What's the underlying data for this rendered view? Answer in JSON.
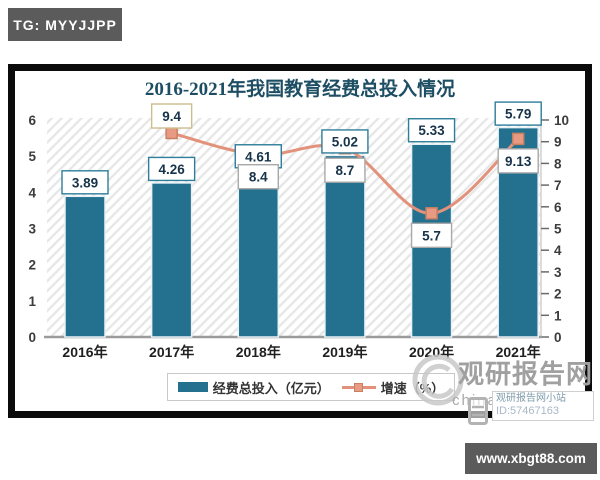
{
  "badges": {
    "top_left": "TG: MYYJJPP",
    "bottom_right": "www.xbgt88.com"
  },
  "chart_data": {
    "type": "bar",
    "combo": "bar+line dual axis",
    "title": "2016-2021年我国教育经费总投入情况",
    "categories": [
      "2016年",
      "2017年",
      "2018年",
      "2019年",
      "2020年",
      "2021年"
    ],
    "series": [
      {
        "name": "经费总投入（亿元）",
        "type": "bar",
        "axis": "left",
        "color": "#24708f",
        "values": [
          3.89,
          4.26,
          4.61,
          5.02,
          5.33,
          5.79
        ]
      },
      {
        "name": "增速（%）",
        "type": "line",
        "axis": "right",
        "color": "#e2927a",
        "marker_color": "#e89a82",
        "values": [
          null,
          9.4,
          8.4,
          8.7,
          5.7,
          9.13
        ]
      }
    ],
    "left_axis": {
      "min": 0,
      "max": 6,
      "tick_labels": [
        "0",
        "1",
        "2",
        "3",
        "4",
        "5",
        "6"
      ]
    },
    "right_axis": {
      "min": 0,
      "max": 10,
      "tick_labels": [
        "0",
        "1",
        "2",
        "3",
        "4",
        "5",
        "6",
        "7",
        "8",
        "9",
        "10"
      ]
    },
    "legend_position": "bottom",
    "background": "diagonal-hatch"
  },
  "watermark": {
    "main": "观研报告网",
    "sub": "chinabaogao",
    "overlay_line1": "观研报告网小站",
    "overlay_line2": "ID:57467163"
  },
  "colors": {
    "bar": "#24708f",
    "line": "#e2927a",
    "title": "#1d4e63",
    "bar_label_border": "#2e7d99",
    "line_label_border": "#a9a9a9",
    "first_line_label_border": "#cbbd8e",
    "badge_bg": "#5b5b5b",
    "frame_border": "#0b0b0b"
  }
}
